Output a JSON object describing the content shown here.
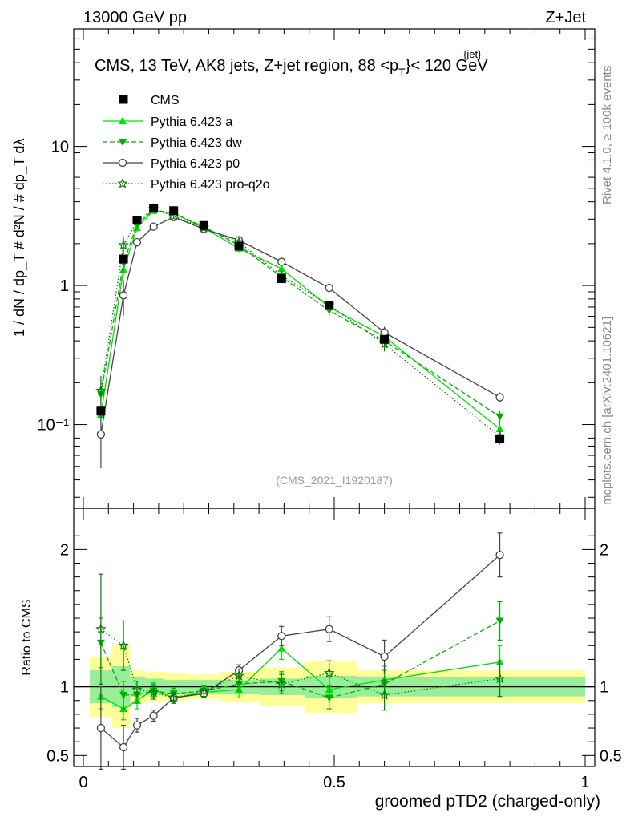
{
  "header": {
    "left": "13000 GeV pp",
    "right": "Z+Jet"
  },
  "side_labels": {
    "rivet": "Rivet 4.1.0, ≥ 100k events",
    "mcplots": "mcplots.cern.ch [arXiv:2401.10621]"
  },
  "chart_data": {
    "type": "line",
    "title_main": "CMS, 13 TeV, AK8 jets, Z+jet region, 88 <p",
    "title_sub": "T",
    "title_sup": "{jet}",
    "title_tail": "}< 120 GeV",
    "analysis_tag": "(CMS_2021_I1920187)",
    "xlabel": "groomed pTD2 (charged-only)",
    "ylabel_main": "1 / dN / dp_T  # d²N / # dp_T dλ",
    "ylabel_ratio": "Ratio to CMS",
    "xlim": [
      0,
      1
    ],
    "ylim_main": [
      0.025,
      70
    ],
    "ylim_ratio": [
      0.42,
      2.3
    ],
    "x_ticks": [
      {
        "value": 0,
        "label": "0"
      },
      {
        "value": 0.5,
        "label": "0.5"
      },
      {
        "value": 1,
        "label": "1"
      }
    ],
    "y_ticks_main": [
      {
        "value": 0.1,
        "label": "10⁻¹"
      },
      {
        "value": 1,
        "label": "1"
      },
      {
        "value": 10,
        "label": "10"
      }
    ],
    "y_ticks_ratio": [
      {
        "value": 0.5,
        "label": "0.5"
      },
      {
        "value": 1,
        "label": "1"
      },
      {
        "value": 2,
        "label": "2"
      }
    ],
    "x": [
      0.035,
      0.08,
      0.107,
      0.14,
      0.18,
      0.24,
      0.31,
      0.395,
      0.49,
      0.6,
      0.83
    ],
    "data": {
      "name": "CMS",
      "values": [
        0.125,
        1.55,
        2.95,
        3.6,
        3.45,
        2.7,
        1.92,
        1.12,
        0.72,
        0.41,
        0.079
      ],
      "stat_band": [
        0.12,
        0.15,
        0.07,
        0.06,
        0.05,
        0.05,
        0.05,
        0.06,
        0.08,
        0.07,
        0.07
      ],
      "syst_band": [
        0.22,
        0.3,
        0.12,
        0.11,
        0.1,
        0.09,
        0.11,
        0.14,
        0.19,
        0.12,
        0.12
      ]
    },
    "series": [
      {
        "name": "Pythia 6.423 a",
        "color": "#00e000",
        "dash": "",
        "marker": "triangle-up",
        "values": [
          0.118,
          1.3,
          2.6,
          3.45,
          3.3,
          2.6,
          1.85,
          1.32,
          0.7,
          0.43,
          0.093
        ],
        "ratio": [
          0.93,
          0.84,
          0.9,
          0.98,
          0.92,
          0.96,
          0.98,
          1.28,
          0.98,
          1.05,
          1.18
        ],
        "ratio_err": [
          0.09,
          0.08,
          0.06,
          0.05,
          0.04,
          0.04,
          0.06,
          0.08,
          0.09,
          0.1,
          0.12
        ]
      },
      {
        "name": "Pythia 6.423 dw",
        "color": "#00b000",
        "dash": "6,3",
        "marker": "triangle-down",
        "values": [
          0.165,
          1.45,
          2.75,
          3.5,
          3.3,
          2.65,
          1.95,
          1.15,
          0.66,
          0.4,
          0.114
        ],
        "ratio": [
          1.32,
          0.94,
          0.94,
          0.97,
          0.95,
          0.97,
          1.02,
          1.04,
          0.92,
          1.02,
          1.48
        ],
        "ratio_err": [
          0.18,
          0.1,
          0.06,
          0.05,
          0.04,
          0.04,
          0.05,
          0.07,
          0.08,
          0.1,
          0.14
        ]
      },
      {
        "name": "Pythia 6.423 p0",
        "color": "#444444",
        "dash": "",
        "marker": "circle-open",
        "values": [
          0.085,
          0.85,
          2.05,
          2.65,
          3.1,
          2.55,
          2.12,
          1.48,
          0.96,
          0.46,
          0.157
        ],
        "ratio": [
          0.7,
          0.56,
          0.72,
          0.79,
          0.92,
          0.95,
          1.12,
          1.37,
          1.42,
          1.22,
          1.96
        ],
        "ratio_err": [
          0.3,
          0.16,
          0.05,
          0.04,
          0.03,
          0.03,
          0.04,
          0.07,
          0.09,
          0.12,
          0.16
        ]
      },
      {
        "name": "Pythia 6.423 pro-q2o",
        "color": "#008000",
        "dash": "1.5,2.5",
        "marker": "star-open",
        "values": [
          0.175,
          1.95,
          2.9,
          3.55,
          3.15,
          2.6,
          2.05,
          1.18,
          0.72,
          0.38,
          0.082
        ],
        "ratio": [
          1.42,
          1.3,
          0.98,
          0.96,
          0.92,
          0.97,
          1.08,
          1.02,
          1.1,
          0.94,
          1.06
        ],
        "ratio_err": [
          0.4,
          0.18,
          0.06,
          0.05,
          0.04,
          0.04,
          0.05,
          0.07,
          0.09,
          0.11,
          0.13
        ]
      }
    ]
  }
}
